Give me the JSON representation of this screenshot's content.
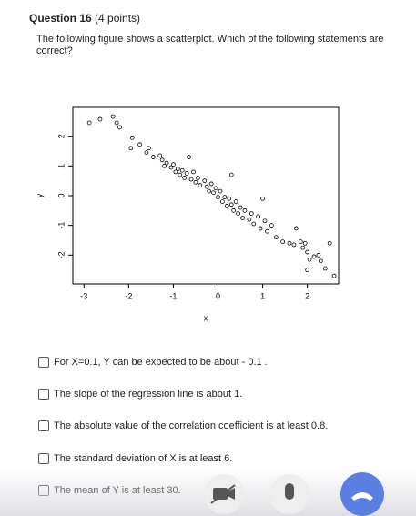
{
  "question": {
    "title": "Question 16",
    "points": "(4 points)",
    "prompt": "The following figure shows a scatterplot. Which of the following statements are correct?"
  },
  "chart_data": {
    "type": "scatter",
    "xlabel": "x",
    "ylabel": "y",
    "xlim": [
      -3.25,
      2.7
    ],
    "ylim": [
      -2.97,
      2.97
    ],
    "xticks": [
      -3,
      -2,
      -1,
      0,
      1,
      2
    ],
    "yticks": [
      -2,
      -1,
      0,
      1,
      2
    ],
    "color": "#000000",
    "x": [
      -2.88,
      -2.64,
      -2.35,
      -2.27,
      -2.2,
      -1.92,
      -1.75,
      -1.95,
      -1.6,
      -1.55,
      -1.45,
      -1.3,
      -1.25,
      -1.2,
      -1.15,
      -1.05,
      -1.0,
      -0.95,
      -0.9,
      -0.85,
      -0.8,
      -0.75,
      -0.7,
      -0.6,
      -0.55,
      -0.5,
      -0.45,
      -0.4,
      -0.3,
      -0.25,
      -0.2,
      -0.15,
      -0.1,
      -0.05,
      0,
      0.05,
      0.1,
      0.15,
      0.2,
      0.25,
      0.3,
      0.35,
      0.4,
      0.45,
      0.5,
      0.55,
      0.6,
      0.7,
      0.75,
      0.8,
      0.9,
      0.95,
      1.0,
      1.05,
      1.1,
      1.2,
      1.3,
      1.45,
      1.6,
      1.7,
      1.75,
      1.85,
      1.9,
      1.95,
      2.0,
      2.05,
      2.15,
      2.25,
      2.3,
      2.4,
      2.0,
      2.5,
      2.6,
      -0.65,
      0.3
    ],
    "y": [
      2.45,
      2.57,
      2.66,
      2.45,
      2.3,
      1.95,
      1.72,
      1.6,
      1.45,
      1.6,
      1.3,
      1.35,
      1.2,
      1.0,
      1.1,
      0.95,
      1.05,
      0.8,
      0.9,
      0.7,
      0.85,
      0.6,
      0.75,
      0.55,
      0.8,
      0.45,
      0.6,
      0.35,
      0.5,
      0.3,
      0.15,
      0.4,
      0.1,
      0.25,
      -0.05,
      0.15,
      -0.2,
      -0.05,
      -0.35,
      -0.1,
      -0.3,
      -0.5,
      -0.2,
      -0.6,
      -0.4,
      -0.75,
      -0.5,
      -0.8,
      -0.6,
      -0.95,
      -0.7,
      -1.1,
      -0.1,
      -0.85,
      -1.2,
      -1.0,
      -1.4,
      -1.55,
      -1.6,
      -1.65,
      -1.1,
      -1.55,
      -1.75,
      -1.6,
      -1.9,
      -2.15,
      -2.05,
      -2.0,
      -2.2,
      -2.45,
      -2.5,
      -1.6,
      -2.7,
      1.3,
      0.7
    ]
  },
  "options": [
    "For X=0.1, Y can be expected to be about - 0.1 .",
    "The slope of the regression line is about 1.",
    "The absolute value of the correlation coefficient is at least 0.8.",
    "The standard deviation of X is at least 6.",
    "The mean of Y is at least 30."
  ]
}
